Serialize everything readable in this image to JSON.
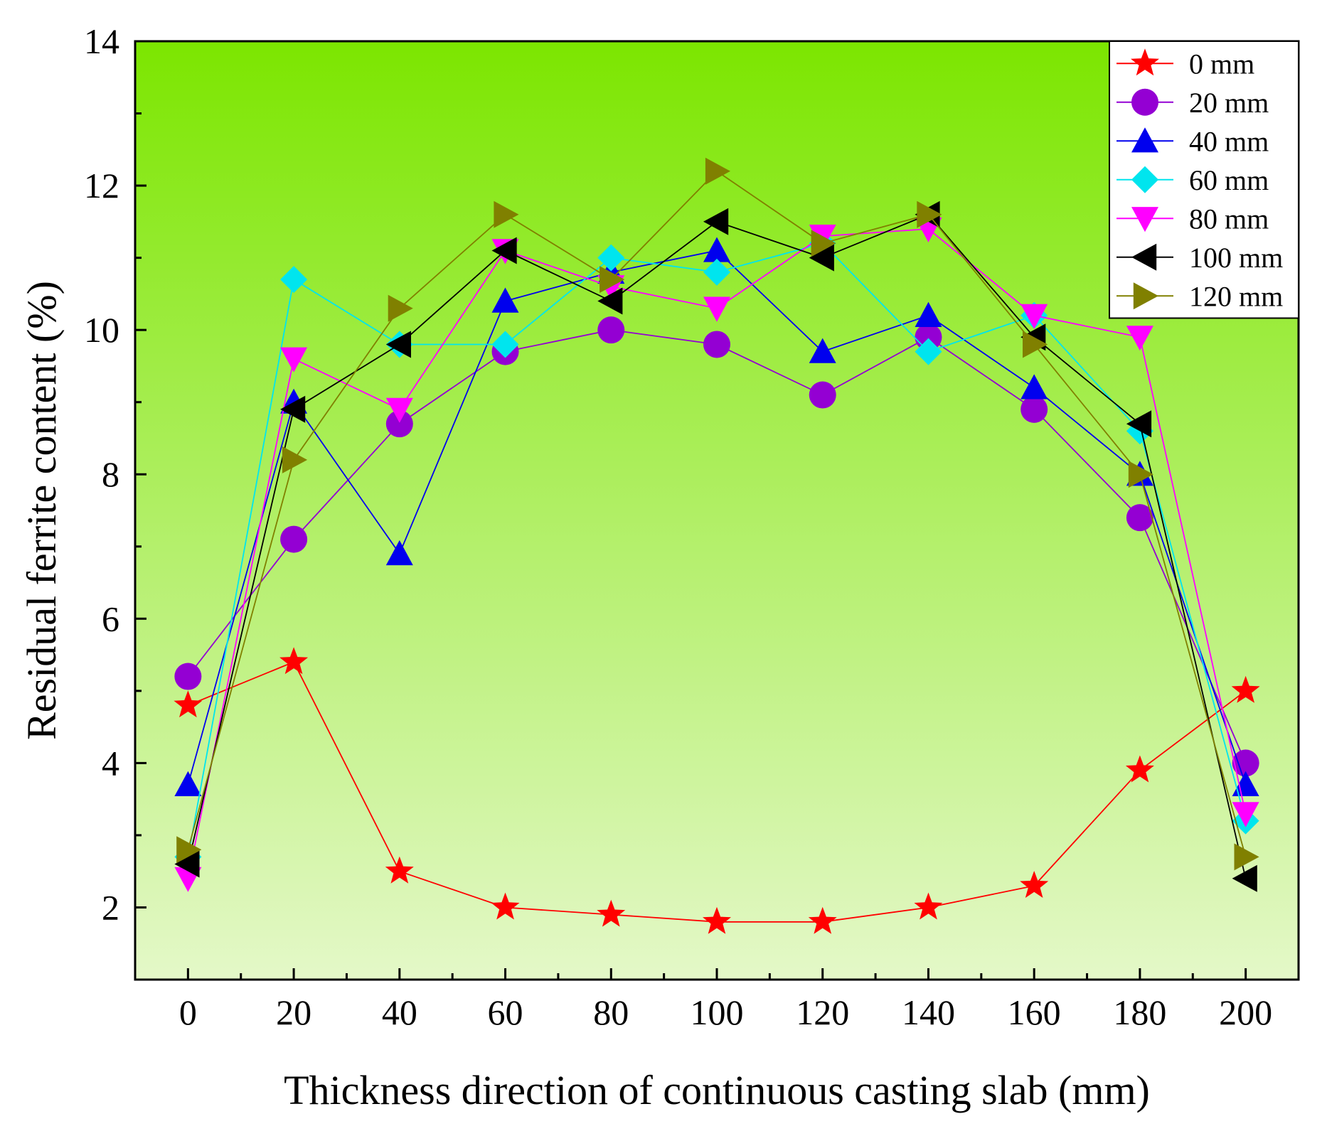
{
  "chart_data": {
    "type": "line",
    "title": "",
    "xlabel": "Thickness direction of continuous casting slab (mm)",
    "ylabel": "Residual ferrite content (%)",
    "xlim": [
      -10,
      210
    ],
    "ylim": [
      1,
      14
    ],
    "x": [
      0,
      20,
      40,
      60,
      80,
      100,
      120,
      140,
      160,
      180,
      200
    ],
    "x_ticks": [
      0,
      20,
      40,
      60,
      80,
      100,
      120,
      140,
      160,
      180,
      200
    ],
    "y_ticks": [
      2,
      4,
      6,
      8,
      10,
      12,
      14
    ],
    "grid": false,
    "legend_position": "top-right",
    "background_gradient": [
      "#7ce600",
      "#e4f8c8"
    ],
    "series": [
      {
        "name": "0 mm",
        "color": "#ff0000",
        "marker": "star",
        "values": [
          4.8,
          5.4,
          2.5,
          2.0,
          1.9,
          1.8,
          1.8,
          2.0,
          2.3,
          3.9,
          5.0
        ]
      },
      {
        "name": "20 mm",
        "color": "#9400d3",
        "marker": "circle",
        "values": [
          5.2,
          7.1,
          8.7,
          9.7,
          10.0,
          9.8,
          9.1,
          9.9,
          8.9,
          7.4,
          4.0
        ]
      },
      {
        "name": "40 mm",
        "color": "#0000ee",
        "marker": "triangle-up",
        "values": [
          3.7,
          9.0,
          6.9,
          10.4,
          10.8,
          11.1,
          9.7,
          10.2,
          9.2,
          8.0,
          3.7
        ]
      },
      {
        "name": "60 mm",
        "color": "#00e5ee",
        "marker": "diamond",
        "values": [
          2.7,
          10.7,
          9.8,
          9.8,
          11.0,
          10.8,
          11.2,
          9.7,
          10.2,
          8.6,
          3.2
        ]
      },
      {
        "name": "80 mm",
        "color": "#ff00ff",
        "marker": "triangle-down",
        "values": [
          2.4,
          9.6,
          8.9,
          11.1,
          10.6,
          10.3,
          11.3,
          11.4,
          10.2,
          9.9,
          3.3
        ]
      },
      {
        "name": "100 mm",
        "color": "#000000",
        "marker": "triangle-left",
        "values": [
          2.6,
          8.9,
          9.8,
          11.1,
          10.4,
          11.5,
          11.0,
          11.6,
          9.9,
          8.7,
          2.4
        ]
      },
      {
        "name": "120 mm",
        "color": "#808000",
        "marker": "triangle-right",
        "values": [
          2.8,
          8.2,
          10.3,
          11.6,
          10.7,
          12.2,
          11.2,
          11.6,
          9.8,
          8.0,
          2.7
        ]
      }
    ]
  }
}
